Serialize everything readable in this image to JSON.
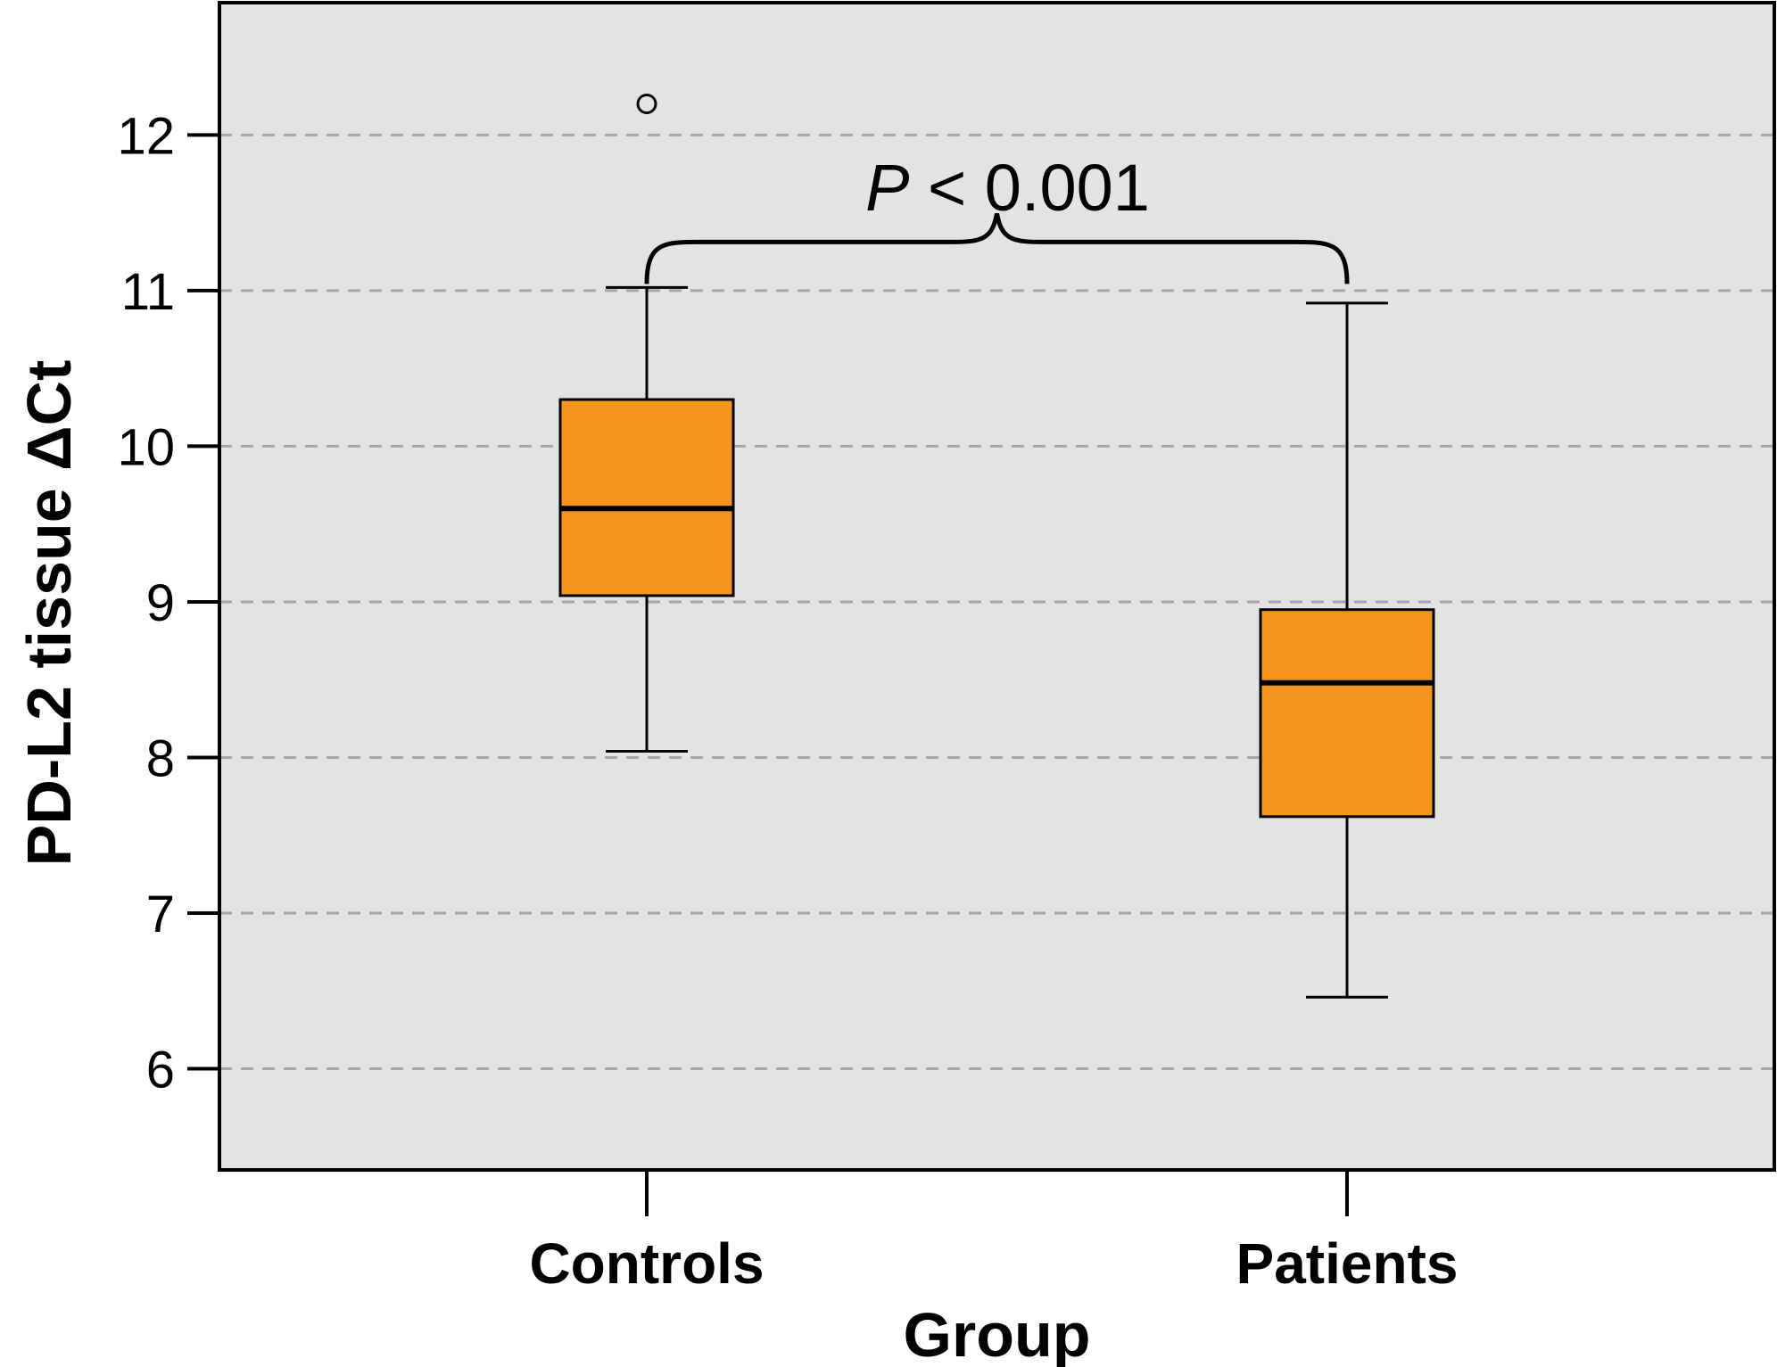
{
  "chart_data": {
    "type": "box",
    "title": "",
    "xlabel": "Group",
    "ylabel": "PD-L2 tissue ΔCt",
    "ylim": [
      5.35,
      12.85
    ],
    "yticks": [
      6,
      7,
      8,
      9,
      10,
      11,
      12
    ],
    "grid": "horizontal dashed",
    "categories": [
      "Controls",
      "Patients"
    ],
    "boxes": [
      {
        "category": "Controls",
        "whisker_low": 8.04,
        "q1": 9.04,
        "median": 9.6,
        "q3": 10.3,
        "whisker_high": 11.02,
        "outliers": [
          12.2
        ]
      },
      {
        "category": "Patients",
        "whisker_low": 6.46,
        "q1": 7.62,
        "median": 8.48,
        "q3": 8.95,
        "whisker_high": 10.92,
        "outliers": []
      }
    ],
    "annotation": {
      "prefix": "P",
      "text": " < 0.001"
    },
    "colors": {
      "box_fill": "#F7941D",
      "plot_bg": "#E3E3E3",
      "grid": "#A6A6A6"
    }
  }
}
